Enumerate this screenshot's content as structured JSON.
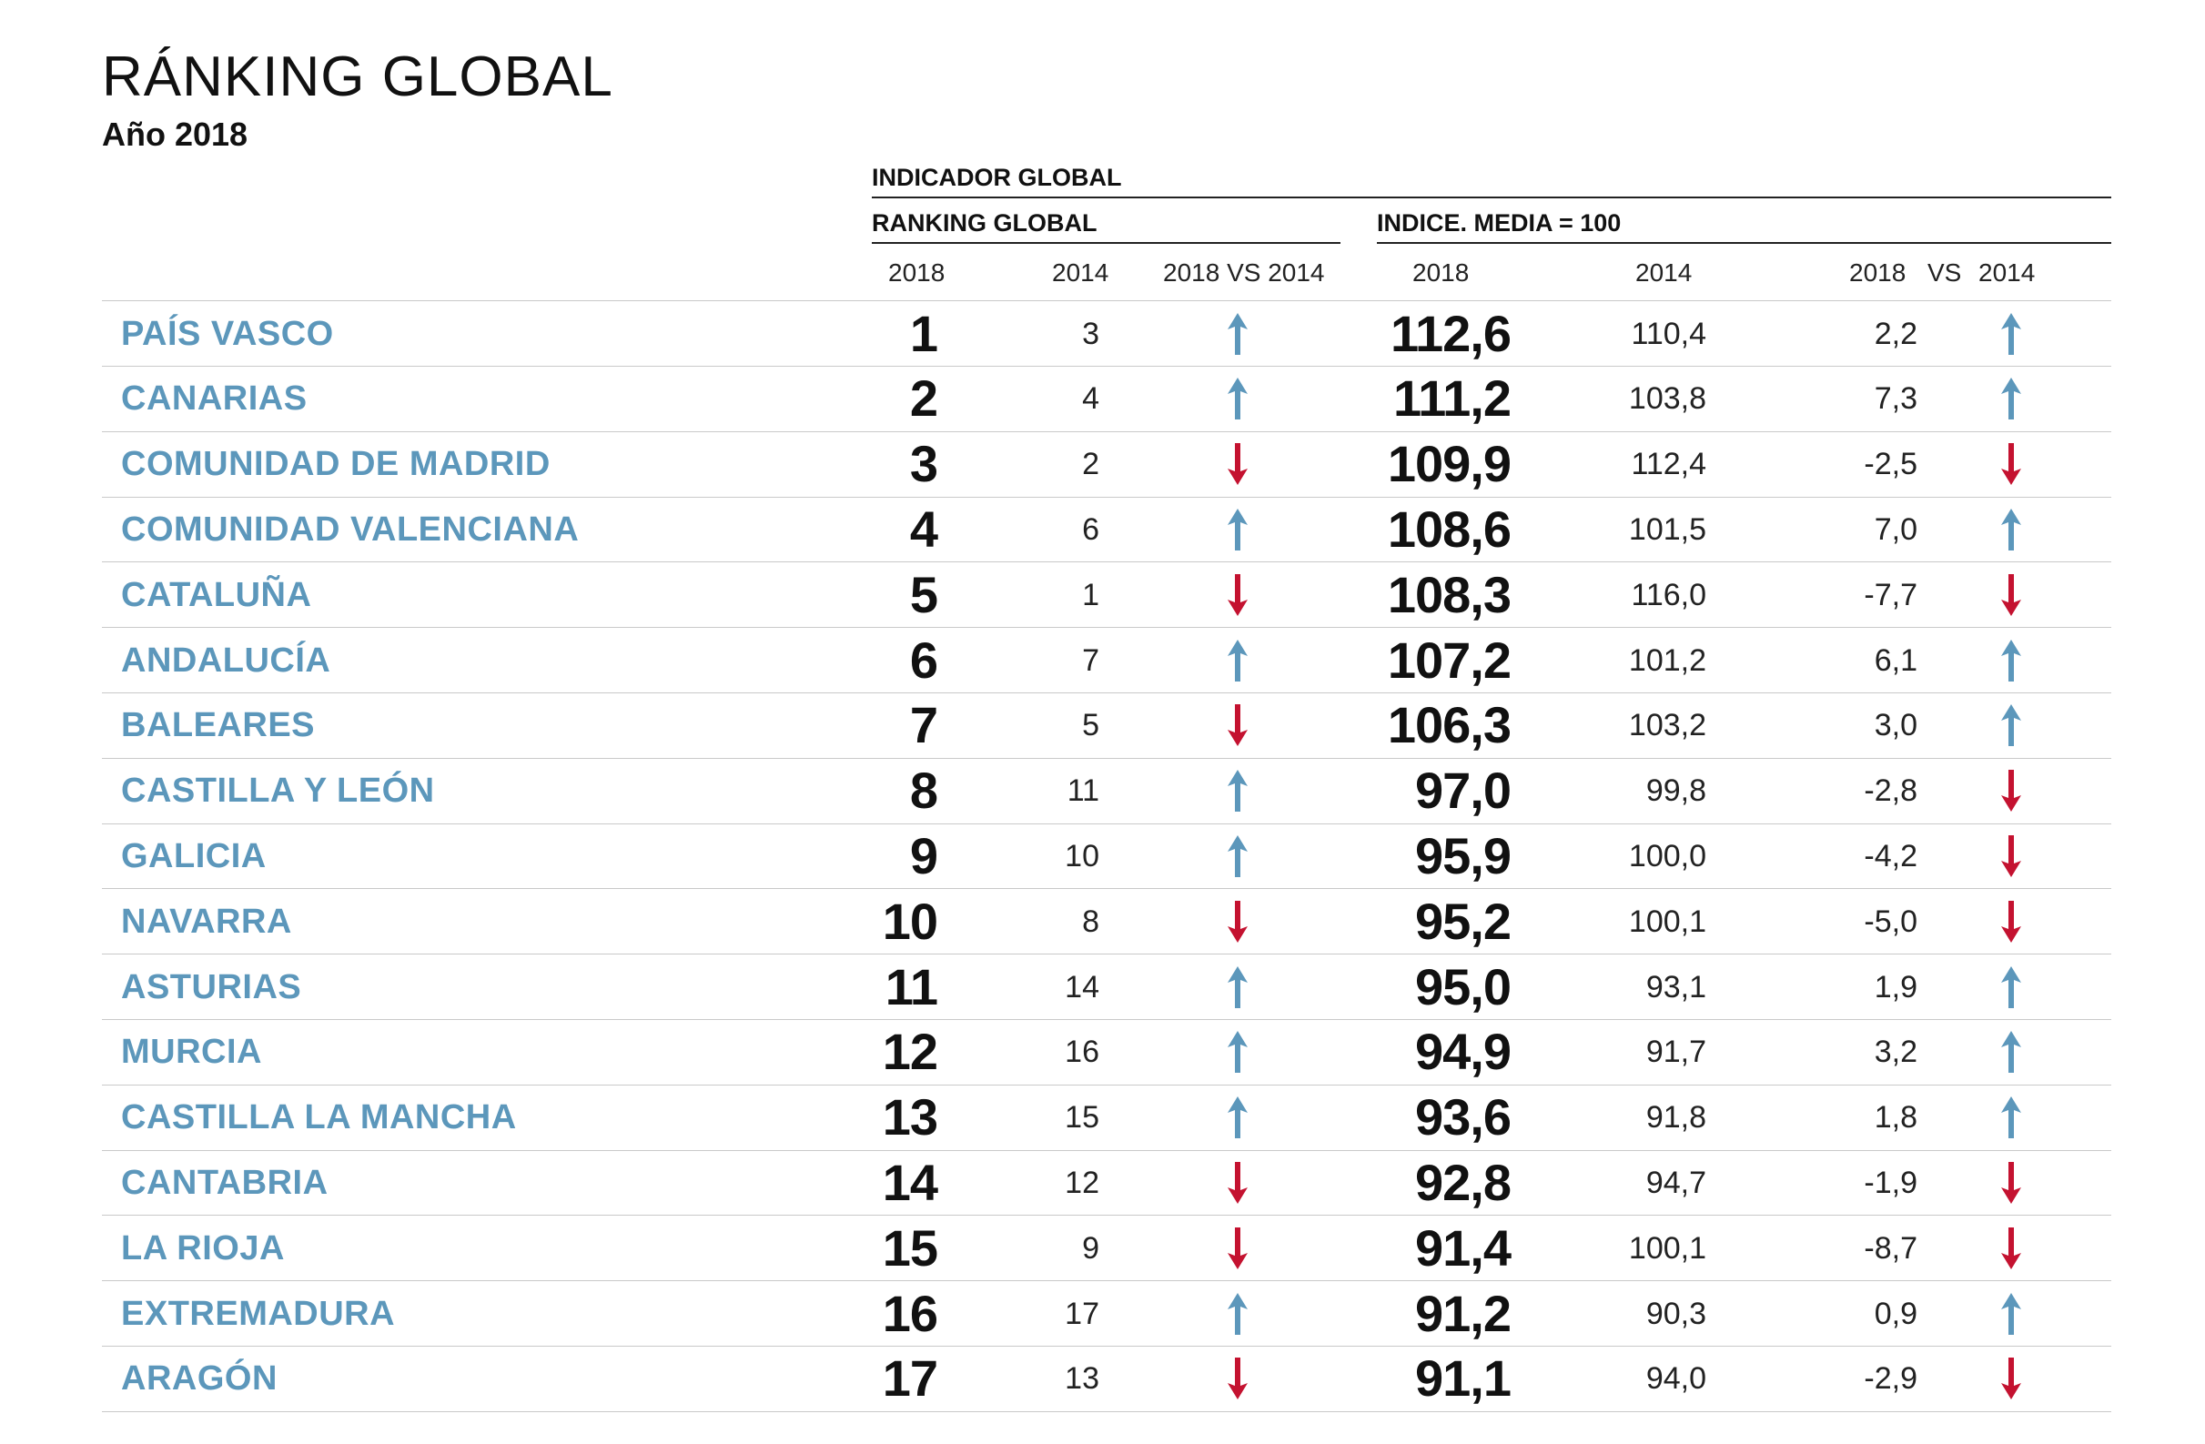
{
  "colors": {
    "up": "#5c97bb",
    "down": "#c41230",
    "region": "#5c97bb",
    "text": "#111111",
    "rule": "#c9c9c9"
  },
  "header": {
    "title": "RÁNKING GLOBAL",
    "subtitle": "Año 2018",
    "group_label": "INDICADOR GLOBAL",
    "ranking_label": "RANKING GLOBAL",
    "index_label": "INDICE. MEDIA = 100",
    "rank_cols": [
      "2018",
      "2014",
      "2018 VS 2014"
    ],
    "index_cols": [
      "2018",
      "2014",
      "2018",
      "VS",
      "2014"
    ]
  },
  "chart_data": {
    "type": "table",
    "title": "RÁNKING GLOBAL",
    "subtitle": "Año 2018",
    "columns": [
      "",
      "RANKING GLOBAL 2018",
      "RANKING GLOBAL 2014",
      "2018 VS 2014",
      "INDICE 2018",
      "INDICE 2014",
      "2018 VS 2014",
      ""
    ],
    "rows": [
      {
        "region": "PAÍS VASCO",
        "rank_2018": "1",
        "rank_2014": "3",
        "rank_trend": "up",
        "index_2018": "112,6",
        "index_2014": "110,4",
        "index_diff": "2,2",
        "index_trend": "up"
      },
      {
        "region": "CANARIAS",
        "rank_2018": "2",
        "rank_2014": "4",
        "rank_trend": "up",
        "index_2018": "111,2",
        "index_2014": "103,8",
        "index_diff": "7,3",
        "index_trend": "up"
      },
      {
        "region": "COMUNIDAD DE MADRID",
        "rank_2018": "3",
        "rank_2014": "2",
        "rank_trend": "down",
        "index_2018": "109,9",
        "index_2014": "112,4",
        "index_diff": "-2,5",
        "index_trend": "down"
      },
      {
        "region": "COMUNIDAD VALENCIANA",
        "rank_2018": "4",
        "rank_2014": "6",
        "rank_trend": "up",
        "index_2018": "108,6",
        "index_2014": "101,5",
        "index_diff": "7,0",
        "index_trend": "up"
      },
      {
        "region": "CATALUÑA",
        "rank_2018": "5",
        "rank_2014": "1",
        "rank_trend": "down",
        "index_2018": "108,3",
        "index_2014": "116,0",
        "index_diff": "-7,7",
        "index_trend": "down"
      },
      {
        "region": "ANDALUCÍA",
        "rank_2018": "6",
        "rank_2014": "7",
        "rank_trend": "up",
        "index_2018": "107,2",
        "index_2014": "101,2",
        "index_diff": "6,1",
        "index_trend": "up"
      },
      {
        "region": "BALEARES",
        "rank_2018": "7",
        "rank_2014": "5",
        "rank_trend": "down",
        "index_2018": "106,3",
        "index_2014": "103,2",
        "index_diff": "3,0",
        "index_trend": "up"
      },
      {
        "region": "CASTILLA Y LEÓN",
        "rank_2018": "8",
        "rank_2014": "11",
        "rank_trend": "up",
        "index_2018": "97,0",
        "index_2014": "99,8",
        "index_diff": "-2,8",
        "index_trend": "down"
      },
      {
        "region": "GALICIA",
        "rank_2018": "9",
        "rank_2014": "10",
        "rank_trend": "up",
        "index_2018": "95,9",
        "index_2014": "100,0",
        "index_diff": "-4,2",
        "index_trend": "down"
      },
      {
        "region": "NAVARRA",
        "rank_2018": "10",
        "rank_2014": "8",
        "rank_trend": "down",
        "index_2018": "95,2",
        "index_2014": "100,1",
        "index_diff": "-5,0",
        "index_trend": "down"
      },
      {
        "region": "ASTURIAS",
        "rank_2018": "11",
        "rank_2014": "14",
        "rank_trend": "up",
        "index_2018": "95,0",
        "index_2014": "93,1",
        "index_diff": "1,9",
        "index_trend": "up"
      },
      {
        "region": "MURCIA",
        "rank_2018": "12",
        "rank_2014": "16",
        "rank_trend": "up",
        "index_2018": "94,9",
        "index_2014": "91,7",
        "index_diff": "3,2",
        "index_trend": "up"
      },
      {
        "region": "CASTILLA LA MANCHA",
        "rank_2018": "13",
        "rank_2014": "15",
        "rank_trend": "up",
        "index_2018": "93,6",
        "index_2014": "91,8",
        "index_diff": "1,8",
        "index_trend": "up"
      },
      {
        "region": "CANTABRIA",
        "rank_2018": "14",
        "rank_2014": "12",
        "rank_trend": "down",
        "index_2018": "92,8",
        "index_2014": "94,7",
        "index_diff": "-1,9",
        "index_trend": "down"
      },
      {
        "region": "LA RIOJA",
        "rank_2018": "15",
        "rank_2014": "9",
        "rank_trend": "down",
        "index_2018": "91,4",
        "index_2014": "100,1",
        "index_diff": "-8,7",
        "index_trend": "down"
      },
      {
        "region": "EXTREMADURA",
        "rank_2018": "16",
        "rank_2014": "17",
        "rank_trend": "up",
        "index_2018": "91,2",
        "index_2014": "90,3",
        "index_diff": "0,9",
        "index_trend": "up"
      },
      {
        "region": "ARAGÓN",
        "rank_2018": "17",
        "rank_2014": "13",
        "rank_trend": "down",
        "index_2018": "91,1",
        "index_2014": "94,0",
        "index_diff": "-2,9",
        "index_trend": "down"
      }
    ]
  }
}
